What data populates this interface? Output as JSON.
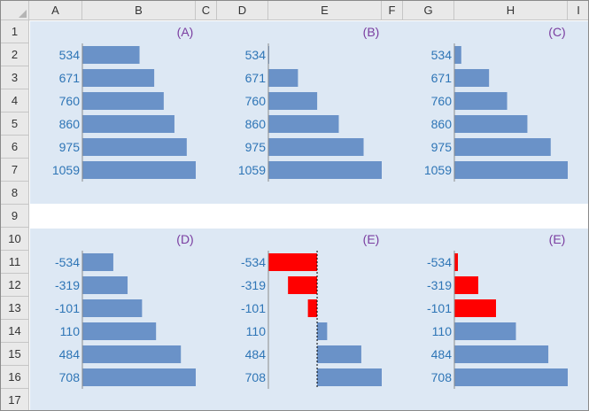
{
  "columns": [
    "A",
    "B",
    "C",
    "D",
    "E",
    "F",
    "G",
    "H",
    "I"
  ],
  "rows": [
    "1",
    "2",
    "3",
    "4",
    "5",
    "6",
    "7",
    "8",
    "9",
    "10",
    "11",
    "12",
    "13",
    "14",
    "15",
    "16",
    "17"
  ],
  "colors": {
    "bar": "#6a92c8",
    "negative_bar": "#ff0000",
    "panel_background": "#dde8f4",
    "title": "#7a3da0",
    "tick_label": "#2e75b6",
    "header_background": "#e9e9e9"
  },
  "chart_data": [
    {
      "type": "bar",
      "orientation": "horizontal",
      "title": "(A)",
      "categories": [
        "534",
        "671",
        "760",
        "860",
        "975",
        "1059"
      ],
      "values": [
        534,
        671,
        760,
        860,
        975,
        1059
      ],
      "xlim": [
        0,
        1059
      ]
    },
    {
      "type": "bar",
      "orientation": "horizontal",
      "title": "(B)",
      "categories": [
        "534",
        "671",
        "760",
        "860",
        "975",
        "1059"
      ],
      "values": [
        534,
        671,
        760,
        860,
        975,
        1059
      ],
      "xlim": [
        534,
        1059
      ]
    },
    {
      "type": "bar",
      "orientation": "horizontal",
      "title": "(C)",
      "categories": [
        "534",
        "671",
        "760",
        "860",
        "975",
        "1059"
      ],
      "values": [
        534,
        671,
        760,
        860,
        975,
        1059
      ],
      "xlim": [
        500,
        1059
      ]
    },
    {
      "type": "bar",
      "orientation": "horizontal",
      "title": "(D)",
      "categories": [
        "-534",
        "-319",
        "-101",
        "110",
        "484",
        "708"
      ],
      "values": [
        -534,
        -319,
        -101,
        110,
        484,
        708
      ],
      "xlim": [
        -1000,
        708
      ],
      "bar_color_rule": "all-same"
    },
    {
      "type": "bar",
      "orientation": "horizontal",
      "title": "(E)",
      "categories": [
        "-534",
        "-319",
        "-101",
        "110",
        "484",
        "708"
      ],
      "values": [
        -534,
        -319,
        -101,
        110,
        484,
        708
      ],
      "xlim": [
        -534,
        708
      ],
      "zero_line": "dotted",
      "bar_color_rule": "negative-red"
    },
    {
      "type": "bar",
      "orientation": "horizontal",
      "title": "(E)",
      "categories": [
        "-534",
        "-319",
        "-101",
        "110",
        "484",
        "708"
      ],
      "values": [
        -534,
        -319,
        -101,
        110,
        484,
        708
      ],
      "xlim": [
        -600,
        708
      ],
      "bar_color_rule": "negative-red",
      "negative_magnitude": true
    }
  ]
}
